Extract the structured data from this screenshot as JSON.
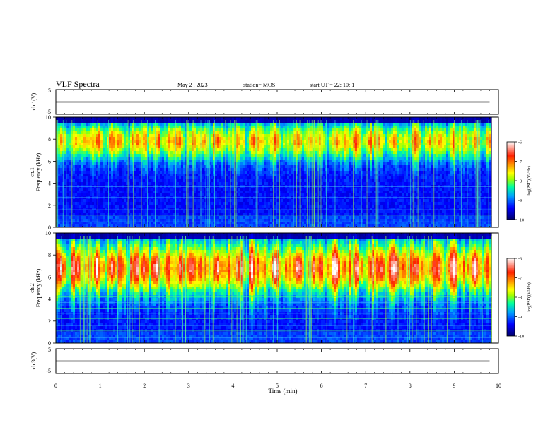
{
  "header": {
    "title": "VLF Spectra",
    "date": "May 2 , 2023",
    "station": "station= MOS",
    "start": "start  UT =   22: 10: 1"
  },
  "chart_data": [
    {
      "type": "line",
      "panel": "channel-1-waveform",
      "ylabel": "ch.1(V)",
      "ylim": [
        -5,
        5
      ],
      "yticks": [
        "5",
        "-5"
      ],
      "xlim": [
        0,
        10
      ],
      "x": [
        0,
        9.8
      ],
      "values": [
        0,
        0
      ]
    },
    {
      "type": "heatmap",
      "panel": "channel-1-spectrogram",
      "ylabel_line1": "ch.1",
      "ylabel_line2": "Frequency (kHz)",
      "ylim": [
        0,
        10
      ],
      "yticks": [
        "0",
        "2",
        "4",
        "6",
        "8",
        "10"
      ],
      "xlim": [
        0,
        10
      ],
      "band_center_khz": 7.8,
      "band_halfwidth_khz": 1.8,
      "band_intensity": 0.62,
      "colorbar": {
        "label": "log(PSD)(V²/Hz)",
        "range": [
          -10,
          -6
        ],
        "ticks": [
          "-6",
          "-7",
          "-8",
          "-9",
          "-10"
        ]
      }
    },
    {
      "type": "heatmap",
      "panel": "channel-2-spectrogram",
      "ylabel_line1": "ch.2",
      "ylabel_line2": "Frequency (kHz)",
      "ylim": [
        0,
        10
      ],
      "yticks": [
        "0",
        "2",
        "4",
        "6",
        "8",
        "10"
      ],
      "xlim": [
        0,
        10
      ],
      "band_center_khz": 6.8,
      "band_halfwidth_khz": 2.6,
      "band_intensity": 0.8,
      "colorbar": {
        "label": "log(PSD)(V²/Hz)",
        "range": [
          -10,
          -6
        ],
        "ticks": [
          "-6",
          "-7",
          "-8",
          "-9",
          "-10"
        ]
      }
    },
    {
      "type": "line",
      "panel": "channel-3-waveform",
      "ylabel": "ch.3(V)",
      "ylim": [
        -5,
        5
      ],
      "yticks": [
        "5",
        "-5"
      ],
      "xlim": [
        0,
        10
      ],
      "x": [
        0,
        9.8
      ],
      "values": [
        0,
        0
      ]
    }
  ],
  "x_axis": {
    "label": "Time  (min)",
    "ticks": [
      "0",
      "1",
      "2",
      "3",
      "4",
      "5",
      "6",
      "7",
      "8",
      "9",
      "10"
    ]
  },
  "colors": {
    "cmap": [
      "#00006a",
      "#0000ff",
      "#00a0ff",
      "#00ffa0",
      "#a0ff00",
      "#ffff00",
      "#ff9900",
      "#ff2000",
      "#ffffff"
    ],
    "trace": "#000000"
  }
}
